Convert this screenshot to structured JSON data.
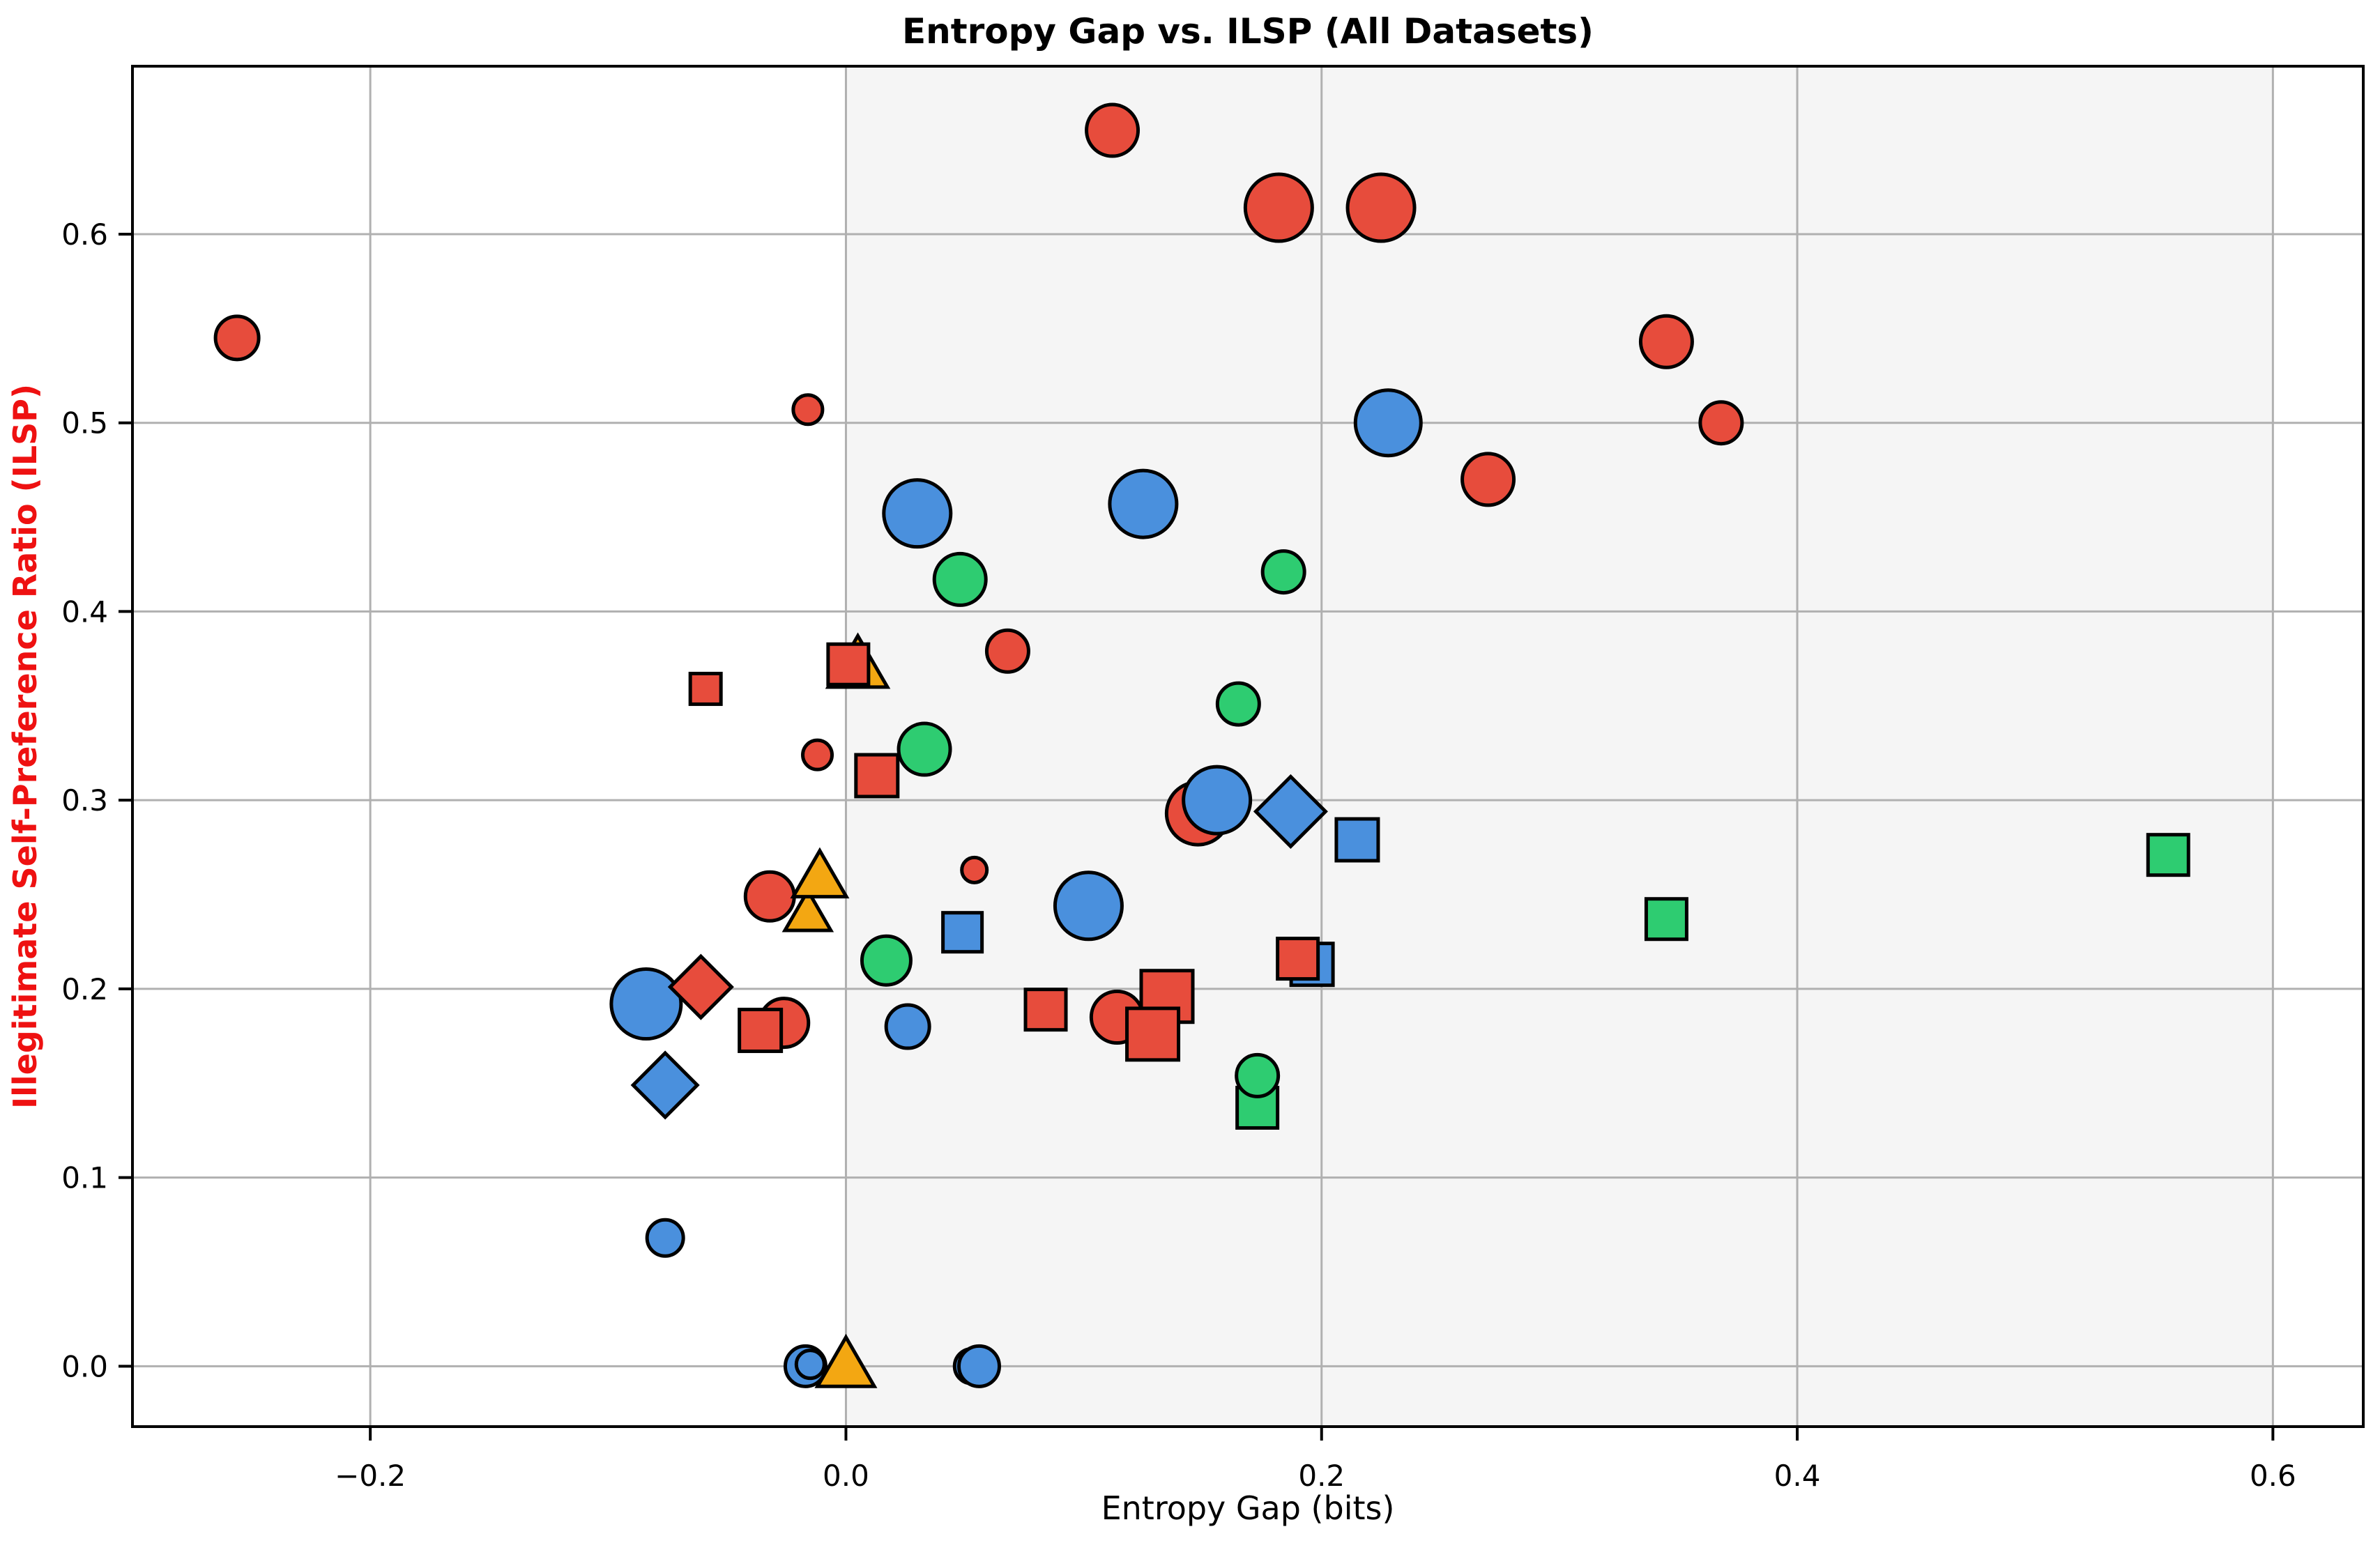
{
  "title": "Entropy Gap vs. ILSP (All Datasets)",
  "chart_data": {
    "type": "scatter",
    "title": "Entropy Gap vs. ILSP (All Datasets)",
    "xlabel": "Entropy Gap (bits)",
    "ylabel": "Illegitimate Self-Preference Ratio (ILSP)",
    "xlim": [
      -0.3,
      0.638
    ],
    "ylim": [
      -0.032,
      0.689
    ],
    "xticks": [
      -0.2,
      0.0,
      0.2,
      0.4,
      0.6
    ],
    "xtick_labels": [
      "−0.2",
      "0.0",
      "0.2",
      "0.4",
      "0.6"
    ],
    "yticks": [
      0.0,
      0.1,
      0.2,
      0.3,
      0.4,
      0.5,
      0.6
    ],
    "ytick_labels": [
      "0.0",
      "0.1",
      "0.2",
      "0.3",
      "0.4",
      "0.5",
      "0.6"
    ],
    "grid": true,
    "legend": "none",
    "shaded_region": {
      "x_from": 0.0,
      "x_to": 0.6
    },
    "colors": {
      "red": "#e74c3c",
      "blue": "#4a90dd",
      "green": "#2ecc71",
      "orange": "#f3a712",
      "marker_edge": "#000000",
      "grid": "#b0b0b0",
      "shade": "#f5f5f5",
      "spine": "#000000",
      "ylabel": "#ee1111"
    },
    "points": [
      {
        "x": -0.256,
        "y": 0.545,
        "color": "red",
        "shape": "circle",
        "size": 31
      },
      {
        "x": 0.112,
        "y": 0.655,
        "color": "red",
        "shape": "circle",
        "size": 37
      },
      {
        "x": 0.182,
        "y": 0.614,
        "color": "red",
        "shape": "circle",
        "size": 48
      },
      {
        "x": 0.225,
        "y": 0.614,
        "color": "red",
        "shape": "circle",
        "size": 48
      },
      {
        "x": 0.345,
        "y": 0.543,
        "color": "red",
        "shape": "circle",
        "size": 37
      },
      {
        "x": 0.368,
        "y": 0.5,
        "color": "red",
        "shape": "circle",
        "size": 30
      },
      {
        "x": 0.27,
        "y": 0.47,
        "color": "red",
        "shape": "circle",
        "size": 37
      },
      {
        "x": 0.228,
        "y": 0.5,
        "color": "blue",
        "shape": "circle",
        "size": 47
      },
      {
        "x": 0.125,
        "y": 0.457,
        "color": "blue",
        "shape": "circle",
        "size": 48
      },
      {
        "x": 0.03,
        "y": 0.452,
        "color": "blue",
        "shape": "circle",
        "size": 48
      },
      {
        "x": -0.016,
        "y": 0.507,
        "color": "red",
        "shape": "circle",
        "size": 21
      },
      {
        "x": 0.048,
        "y": 0.417,
        "color": "green",
        "shape": "circle",
        "size": 37
      },
      {
        "x": 0.184,
        "y": 0.421,
        "color": "green",
        "shape": "circle",
        "size": 30
      },
      {
        "x": 0.068,
        "y": 0.379,
        "color": "red",
        "shape": "circle",
        "size": 30
      },
      {
        "x": -0.059,
        "y": 0.359,
        "color": "red",
        "shape": "square",
        "size": 22
      },
      {
        "x": 0.005,
        "y": 0.369,
        "color": "orange",
        "shape": "triangle",
        "size": 49
      },
      {
        "x": 0.001,
        "y": 0.372,
        "color": "red",
        "shape": "square",
        "size": 29
      },
      {
        "x": -0.012,
        "y": 0.324,
        "color": "red",
        "shape": "circle",
        "size": 21
      },
      {
        "x": 0.013,
        "y": 0.313,
        "color": "red",
        "shape": "square",
        "size": 30
      },
      {
        "x": 0.033,
        "y": 0.327,
        "color": "green",
        "shape": "circle",
        "size": 37
      },
      {
        "x": 0.165,
        "y": 0.351,
        "color": "green",
        "shape": "circle",
        "size": 30
      },
      {
        "x": 0.148,
        "y": 0.293,
        "color": "red",
        "shape": "circle",
        "size": 45
      },
      {
        "x": 0.156,
        "y": 0.3,
        "color": "blue",
        "shape": "circle",
        "size": 48
      },
      {
        "x": 0.187,
        "y": 0.294,
        "color": "blue",
        "shape": "diamond",
        "size": 50
      },
      {
        "x": 0.215,
        "y": 0.279,
        "color": "blue",
        "shape": "square",
        "size": 30
      },
      {
        "x": -0.032,
        "y": 0.249,
        "color": "red",
        "shape": "circle",
        "size": 35
      },
      {
        "x": -0.016,
        "y": 0.238,
        "color": "orange",
        "shape": "triangle",
        "size": 38
      },
      {
        "x": -0.011,
        "y": 0.257,
        "color": "orange",
        "shape": "triangle",
        "size": 44
      },
      {
        "x": 0.054,
        "y": 0.263,
        "color": "red",
        "shape": "circle",
        "size": 18
      },
      {
        "x": 0.049,
        "y": 0.23,
        "color": "blue",
        "shape": "square",
        "size": 28
      },
      {
        "x": 0.017,
        "y": 0.215,
        "color": "green",
        "shape": "circle",
        "size": 35
      },
      {
        "x": -0.084,
        "y": 0.192,
        "color": "blue",
        "shape": "circle",
        "size": 50
      },
      {
        "x": -0.061,
        "y": 0.201,
        "color": "red",
        "shape": "diamond",
        "size": 44
      },
      {
        "x": -0.026,
        "y": 0.182,
        "color": "red",
        "shape": "circle",
        "size": 35
      },
      {
        "x": -0.036,
        "y": 0.178,
        "color": "red",
        "shape": "square",
        "size": 30
      },
      {
        "x": -0.076,
        "y": 0.149,
        "color": "blue",
        "shape": "diamond",
        "size": 46
      },
      {
        "x": 0.026,
        "y": 0.18,
        "color": "blue",
        "shape": "circle",
        "size": 31
      },
      {
        "x": 0.084,
        "y": 0.189,
        "color": "red",
        "shape": "square",
        "size": 29
      },
      {
        "x": 0.135,
        "y": 0.196,
        "color": "red",
        "shape": "square",
        "size": 37
      },
      {
        "x": 0.114,
        "y": 0.185,
        "color": "red",
        "shape": "circle",
        "size": 37
      },
      {
        "x": 0.129,
        "y": 0.176,
        "color": "red",
        "shape": "square",
        "size": 37
      },
      {
        "x": 0.102,
        "y": 0.244,
        "color": "blue",
        "shape": "circle",
        "size": 48
      },
      {
        "x": 0.196,
        "y": 0.213,
        "color": "blue",
        "shape": "square",
        "size": 30
      },
      {
        "x": 0.19,
        "y": 0.216,
        "color": "red",
        "shape": "square",
        "size": 29
      },
      {
        "x": 0.173,
        "y": 0.137,
        "color": "green",
        "shape": "square",
        "size": 29
      },
      {
        "x": 0.173,
        "y": 0.154,
        "color": "green",
        "shape": "circle",
        "size": 30
      },
      {
        "x": 0.345,
        "y": 0.237,
        "color": "green",
        "shape": "square",
        "size": 29
      },
      {
        "x": 0.556,
        "y": 0.271,
        "color": "green",
        "shape": "square",
        "size": 29
      },
      {
        "x": -0.076,
        "y": 0.068,
        "color": "blue",
        "shape": "circle",
        "size": 26
      },
      {
        "x": -0.017,
        "y": 0.0,
        "color": "blue",
        "shape": "circle",
        "size": 29
      },
      {
        "x": -0.015,
        "y": 0.001,
        "color": "blue",
        "shape": "circle",
        "size": 20
      },
      {
        "x": 0.0,
        "y": -0.002,
        "color": "orange",
        "shape": "triangle",
        "size": 47
      },
      {
        "x": 0.053,
        "y": 0.0,
        "color": "blue",
        "shape": "circle",
        "size": 25
      },
      {
        "x": 0.056,
        "y": 0.0,
        "color": "blue",
        "shape": "circle",
        "size": 29
      }
    ]
  }
}
